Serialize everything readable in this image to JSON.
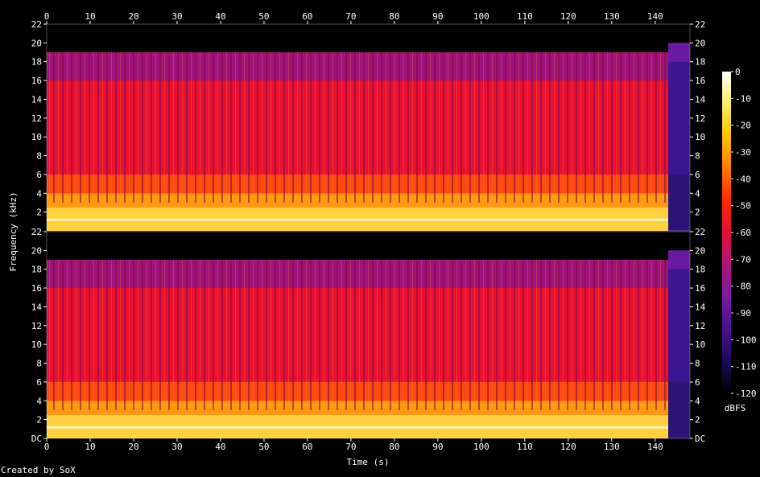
{
  "chart_data": {
    "type": "heatmap",
    "subtype": "spectrogram",
    "channels": 2,
    "xlabel": "Time (s)",
    "ylabel": "Frequency (kHz)",
    "xlim": [
      0,
      148
    ],
    "ylim": [
      0,
      22
    ],
    "x_ticks": [
      0,
      10,
      20,
      30,
      40,
      50,
      60,
      70,
      80,
      90,
      100,
      110,
      120,
      130,
      140
    ],
    "y_ticks": [
      0,
      2,
      4,
      6,
      8,
      10,
      12,
      14,
      16,
      18,
      20,
      22
    ],
    "y_tick_labels_top": [
      "2",
      "4",
      "6",
      "8",
      "10",
      "12",
      "14",
      "16",
      "18",
      "20",
      "22"
    ],
    "y_tick_labels_bottom": [
      "DC",
      "2",
      "4",
      "6",
      "8",
      "10",
      "12",
      "14",
      "16",
      "18",
      "20",
      "22"
    ],
    "audio_end_s": 143,
    "cutoff_khz": 19,
    "colorbar": {
      "label": "dBFS",
      "range": [
        -120,
        0
      ],
      "ticks": [
        0,
        -10,
        -20,
        -30,
        -40,
        -50,
        -60,
        -70,
        -80,
        -90,
        -100,
        -110,
        -120
      ],
      "tick_labels": [
        "0",
        "-10",
        "-20",
        "-30",
        "-40",
        "-50",
        "-60",
        "-70",
        "-80",
        "-90",
        "-100",
        "-110",
        "-120"
      ],
      "colors": [
        "#000000",
        "#1a0a5c",
        "#4b0f8c",
        "#7a1a9e",
        "#b0147a",
        "#e0103a",
        "#ff2a00",
        "#ff7a00",
        "#ffc400",
        "#ffee60",
        "#ffffff"
      ]
    }
  },
  "footer": {
    "created_by": "Created by SoX"
  }
}
